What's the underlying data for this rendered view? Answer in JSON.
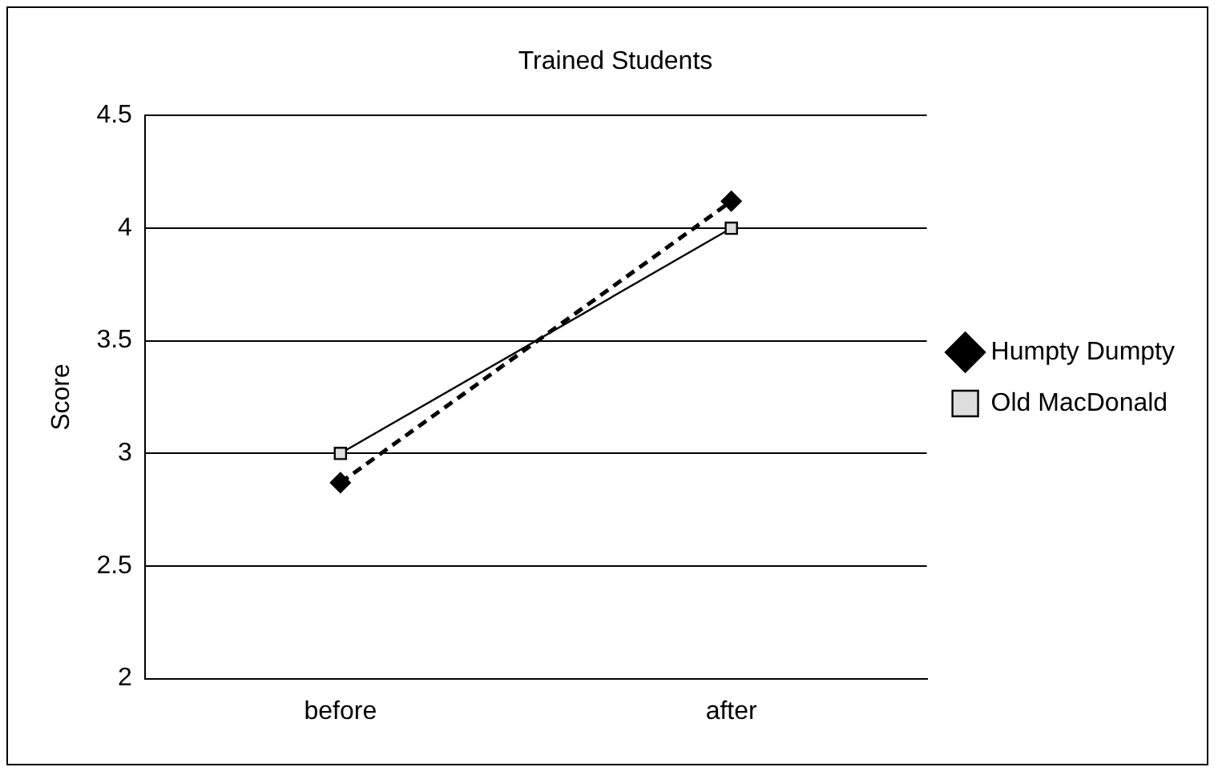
{
  "chart_data": {
    "type": "line",
    "title": "Trained Students",
    "ylabel": "Score",
    "categories": [
      "before",
      "after"
    ],
    "series": [
      {
        "name": "Humpty Dumpty",
        "color": "#000000",
        "values": [
          2.87,
          4.12
        ],
        "marker": "diamond",
        "line_style": "dashed"
      },
      {
        "name": "Old MacDonald",
        "color": "#000000",
        "values": [
          3.0,
          4.0
        ],
        "marker": "square",
        "line_style": "solid"
      }
    ],
    "ylim": [
      2,
      4.5
    ],
    "yticks": [
      2,
      2.5,
      3,
      3.5,
      4,
      4.5
    ],
    "grid": "y",
    "legend": "right"
  }
}
